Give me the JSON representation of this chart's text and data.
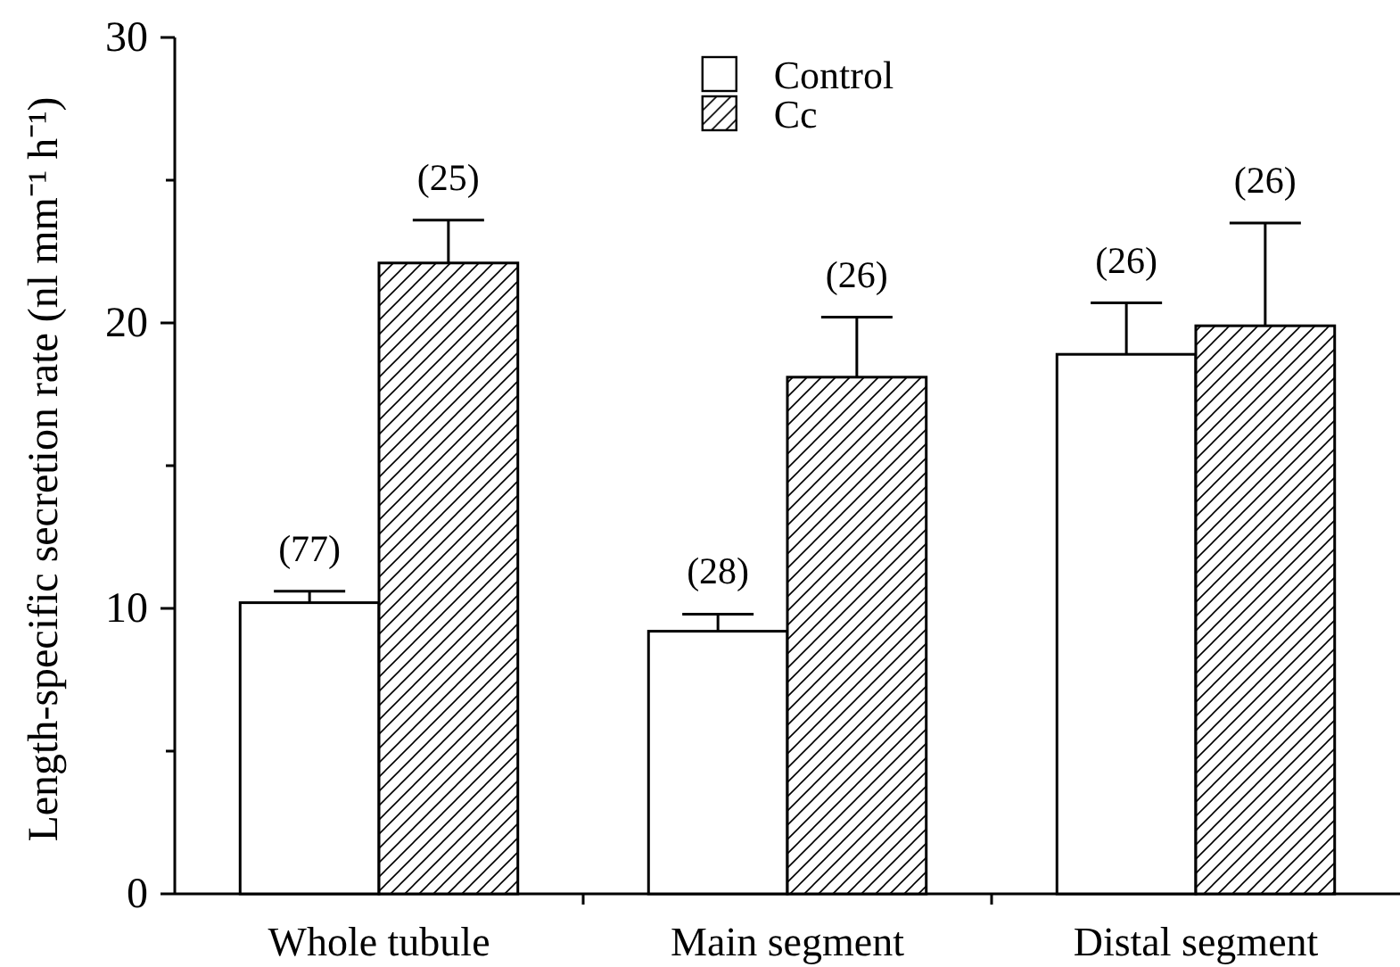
{
  "chart_data": {
    "type": "bar",
    "ylabel": "Length-specific secretion rate (nl mm⁻¹ h⁻¹)",
    "categories": [
      "Whole tubule",
      "Main segment",
      "Distal segment"
    ],
    "series": [
      {
        "name": "Control",
        "color": "#ffffff",
        "values": [
          10.2,
          9.2,
          18.9
        ],
        "errors": [
          [
            10.2,
            10.6
          ],
          [
            9.2,
            9.8
          ],
          [
            18.9,
            20.7
          ]
        ]
      },
      {
        "name": "Cc",
        "color": "#000000",
        "values": [
          22.1,
          18.1,
          19.9
        ],
        "errors": [
          [
            22.1,
            23.6
          ],
          [
            18.1,
            20.2
          ],
          [
            19.9,
            23.5
          ]
        ]
      }
    ],
    "annotations": [
      "(77)",
      "(25)",
      "(28)",
      "(26)",
      "(26)",
      "(26)"
    ],
    "ylim": [
      0,
      30
    ],
    "yticks": [
      0,
      {
        "value": 5,
        "label": null
      },
      10,
      {
        "value": 15,
        "label": null
      },
      20,
      {
        "value": 25,
        "label": null
      },
      30
    ],
    "legend": "top",
    "grid": false
  }
}
